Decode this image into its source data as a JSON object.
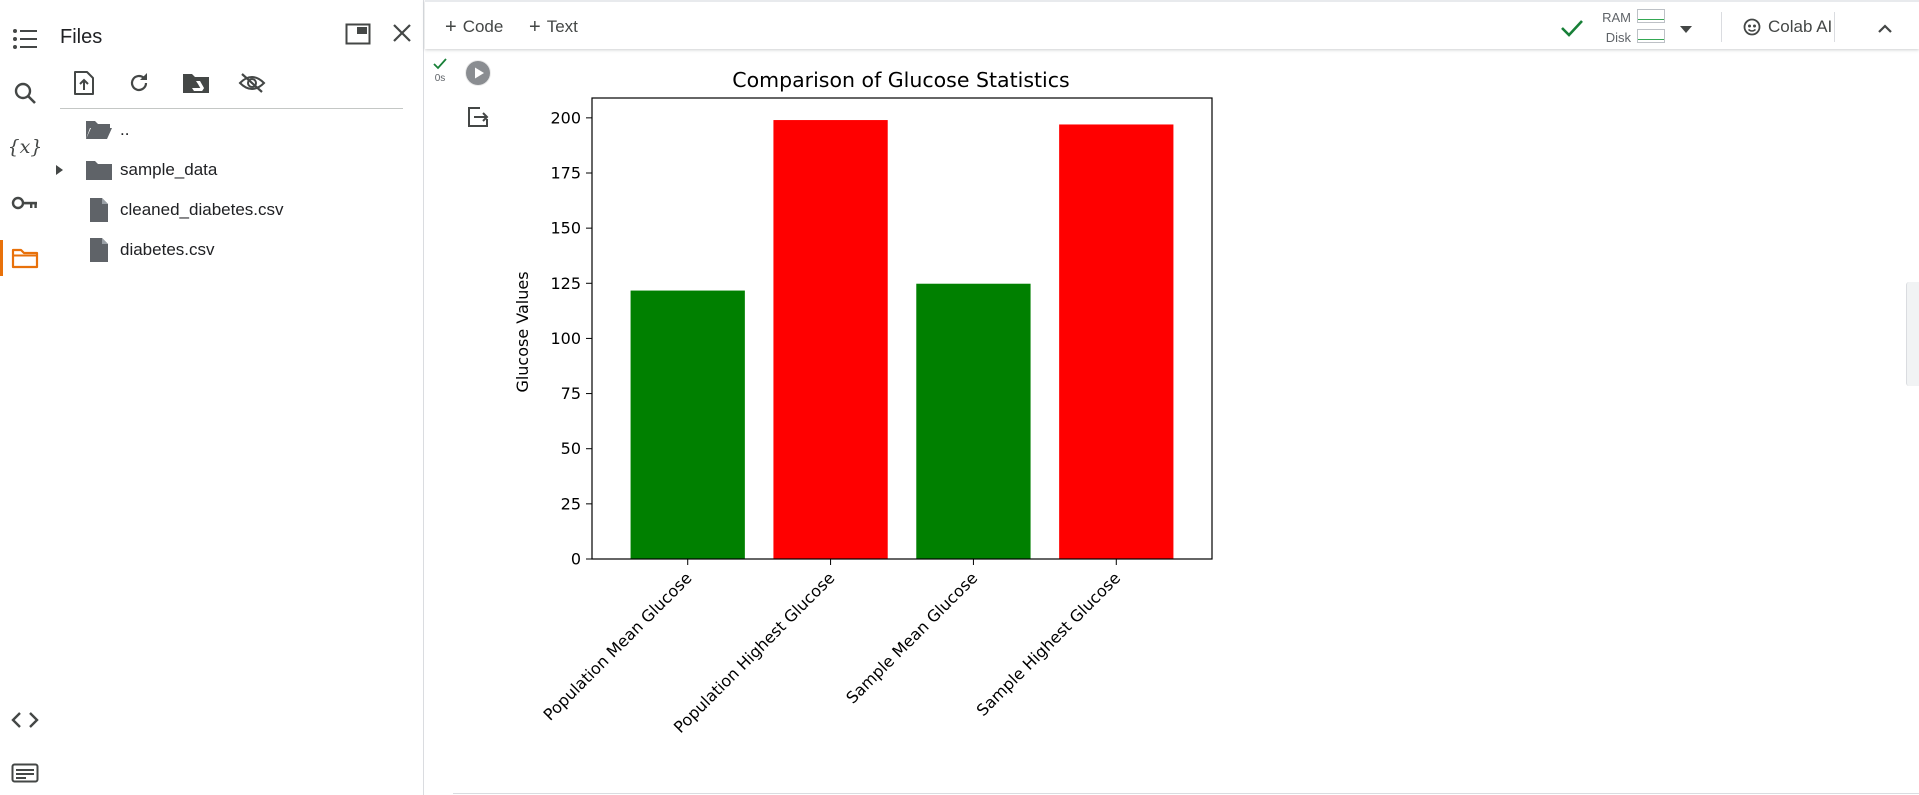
{
  "sidebar": {
    "items": [
      {
        "name": "table-of-contents",
        "icon": "list-icon"
      },
      {
        "name": "find",
        "icon": "search-icon"
      },
      {
        "name": "variables",
        "icon": "variables-icon"
      },
      {
        "name": "secrets",
        "icon": "key-icon"
      },
      {
        "name": "files",
        "icon": "folder-icon",
        "active": true
      },
      {
        "name": "code-snippets",
        "icon": "code-icon"
      },
      {
        "name": "command-palette",
        "icon": "terminal-icon"
      }
    ],
    "accent_color": "#e8710a"
  },
  "files_panel": {
    "title": "Files",
    "tree": [
      {
        "label": "..",
        "type": "parent-folder"
      },
      {
        "label": "sample_data",
        "type": "folder"
      },
      {
        "label": "cleaned_diabetes.csv",
        "type": "file"
      },
      {
        "label": "diabetes.csv",
        "type": "file"
      }
    ]
  },
  "toolbar": {
    "code_label": "Code",
    "text_label": "Text",
    "ram_label": "RAM",
    "disk_label": "Disk",
    "colab_ai_label": "Colab AI",
    "connected_color": "#188038"
  },
  "cell": {
    "exec_time": "0s"
  },
  "chart_data": {
    "type": "bar",
    "title": "Comparison of Glucose Statistics",
    "xlabel": "",
    "ylabel": "Glucose Values",
    "categories": [
      "Population Mean Glucose",
      "Population Highest Glucose",
      "Sample Mean Glucose",
      "Sample Highest Glucose"
    ],
    "values": [
      121.7,
      199,
      124.8,
      197
    ],
    "colors": [
      "#008000",
      "#ff0000",
      "#008000",
      "#ff0000"
    ],
    "ylim": [
      0,
      209
    ],
    "yticks": [
      0,
      25,
      50,
      75,
      100,
      125,
      150,
      175,
      200
    ],
    "grid": false
  }
}
